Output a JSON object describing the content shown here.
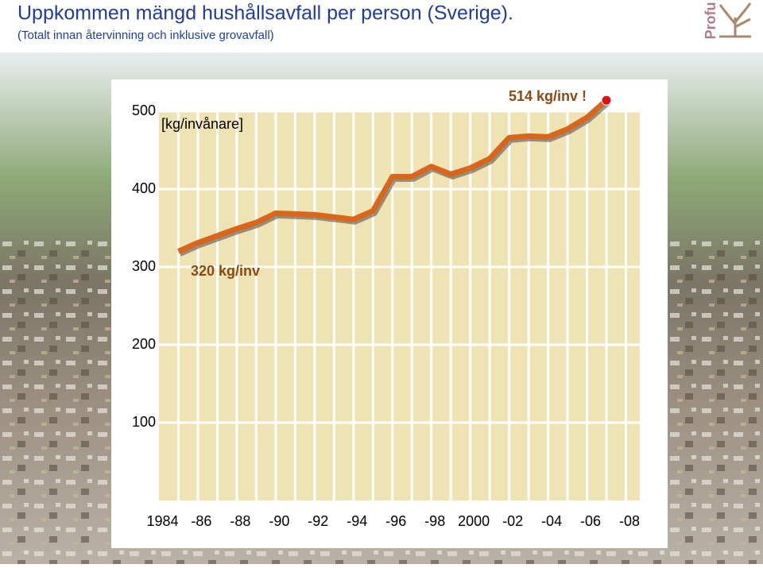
{
  "chart_data": {
    "type": "line",
    "title": "Uppkommen mängd hushållsavfall per person (Sverige).",
    "subtitle": "(Totalt innan återvinning och inklusive grovavfall)",
    "logo": "Profu",
    "y_label": "[kg/invånare]",
    "annotations": [
      "320 kg/inv",
      "514 kg/inv !"
    ],
    "x": [
      1984,
      1985,
      1986,
      1987,
      1988,
      1989,
      1990,
      1991,
      1992,
      1993,
      1994,
      1995,
      1996,
      1997,
      1998,
      1999,
      2000,
      2001,
      2002,
      2003,
      2004,
      2005,
      2006
    ],
    "series": [
      {
        "name": "Hushållsavfall",
        "color": "#d9661a",
        "values": [
          320,
          331,
          340,
          349,
          357,
          369,
          368,
          367,
          364,
          361,
          372,
          416,
          416,
          429,
          419,
          427,
          439,
          466,
          468,
          467,
          477,
          492,
          514
        ]
      }
    ],
    "xlim": [
      1983,
      2008
    ],
    "xticks": [
      1984,
      {
        "value": 1986,
        "label": "-86"
      },
      {
        "value": 1988,
        "label": "-88"
      },
      {
        "value": 1990,
        "label": "-90"
      },
      {
        "value": 1992,
        "label": "-92"
      },
      {
        "value": 1994,
        "label": "-94"
      },
      {
        "value": 1996,
        "label": "-96"
      },
      {
        "value": 1998,
        "label": "-98"
      },
      2000,
      {
        "value": 2002,
        "label": "-02"
      },
      {
        "value": 2004,
        "label": "-04"
      },
      {
        "value": 2006,
        "label": "-06"
      },
      {
        "value": 2008,
        "label": "-08"
      }
    ],
    "ylim": [
      0,
      500
    ],
    "yticks": [
      100,
      200,
      300,
      400,
      500
    ],
    "grid": true
  }
}
